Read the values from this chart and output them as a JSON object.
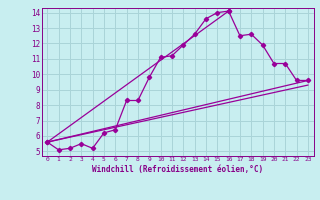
{
  "title": "",
  "xlabel": "Windchill (Refroidissement éolien,°C)",
  "ylabel": "",
  "bg_color": "#c8eef0",
  "grid_color": "#aad4d8",
  "line_color": "#990099",
  "text_color": "#880088",
  "xlim": [
    -0.5,
    23.5
  ],
  "ylim": [
    4.7,
    14.3
  ],
  "xticks": [
    0,
    1,
    2,
    3,
    4,
    5,
    6,
    7,
    8,
    9,
    10,
    11,
    12,
    13,
    14,
    15,
    16,
    17,
    18,
    19,
    20,
    21,
    22,
    23
  ],
  "yticks": [
    5,
    6,
    7,
    8,
    9,
    10,
    11,
    12,
    13,
    14
  ],
  "lines": [
    {
      "x": [
        0,
        1,
        2,
        3,
        4,
        5,
        6,
        7,
        8,
        9,
        10,
        11,
        12,
        13,
        14,
        15,
        16
      ],
      "y": [
        5.6,
        5.1,
        5.2,
        5.5,
        5.2,
        6.2,
        6.4,
        8.3,
        8.3,
        9.8,
        11.1,
        11.2,
        11.9,
        12.6,
        13.6,
        14.0,
        14.1
      ],
      "marker": true
    },
    {
      "x": [
        0,
        16,
        17,
        18,
        19,
        20,
        21,
        22,
        23
      ],
      "y": [
        5.6,
        14.1,
        12.5,
        12.6,
        11.9,
        10.7,
        10.7,
        9.6,
        9.6
      ],
      "marker": true
    },
    {
      "x": [
        0,
        23
      ],
      "y": [
        5.6,
        9.6
      ],
      "marker": false
    },
    {
      "x": [
        0,
        23
      ],
      "y": [
        5.6,
        9.3
      ],
      "marker": false
    }
  ]
}
